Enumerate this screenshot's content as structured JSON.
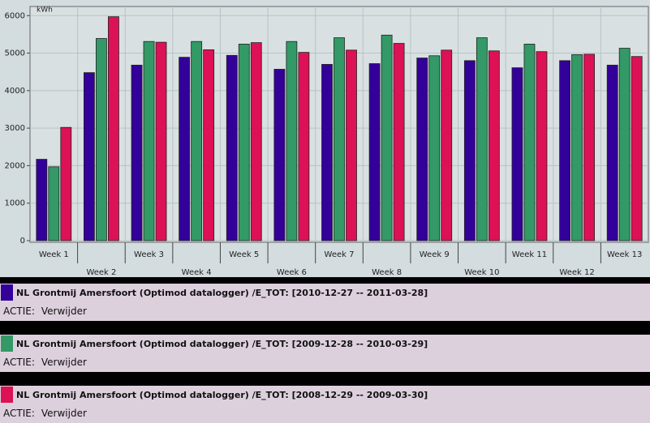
{
  "chart_data": {
    "type": "bar",
    "y_label": "kWh",
    "categories": [
      "Week 1",
      "Week 2",
      "Week 3",
      "Week 4",
      "Week 5",
      "Week 6",
      "Week 7",
      "Week 8",
      "Week 9",
      "Week 10",
      "Week 11",
      "Week 12",
      "Week 13"
    ],
    "series": [
      {
        "name": "NL Grontmij Amersfoort (Optimod datalogger) /E_TOT: [2010-12-27 -- 2011-03-28]",
        "color": "#330099",
        "values": [
          2170,
          4480,
          4680,
          4890,
          4940,
          4570,
          4700,
          4720,
          4870,
          4800,
          4610,
          4800,
          4680
        ]
      },
      {
        "name": "NL Grontmij Amersfoort (Optimod datalogger) /E_TOT: [2009-12-28 -- 2010-03-29]",
        "color": "#339966",
        "values": [
          1970,
          5390,
          5310,
          5310,
          5240,
          5310,
          5410,
          5480,
          4930,
          5410,
          5240,
          4960,
          5130
        ]
      },
      {
        "name": "NL Grontmij Amersfoort (Optimod datalogger) /E_TOT: [2008-12-29 -- 2009-03-30]",
        "color": "#dd1155",
        "values": [
          3020,
          5970,
          5290,
          5090,
          5280,
          5020,
          5080,
          5260,
          5080,
          5060,
          5040,
          4970,
          4910
        ]
      }
    ],
    "ylim": [
      0,
      6200
    ],
    "yticks": [
      0,
      1000,
      2000,
      3000,
      4000,
      5000,
      6000
    ],
    "grid": true
  },
  "legend_rows": [
    {
      "action_label": "ACTIE:",
      "action": "Verwijder"
    },
    {
      "action_label": "ACTIE:",
      "action": "Verwijder"
    },
    {
      "action_label": "ACTIE:",
      "action": "Verwijder"
    }
  ]
}
